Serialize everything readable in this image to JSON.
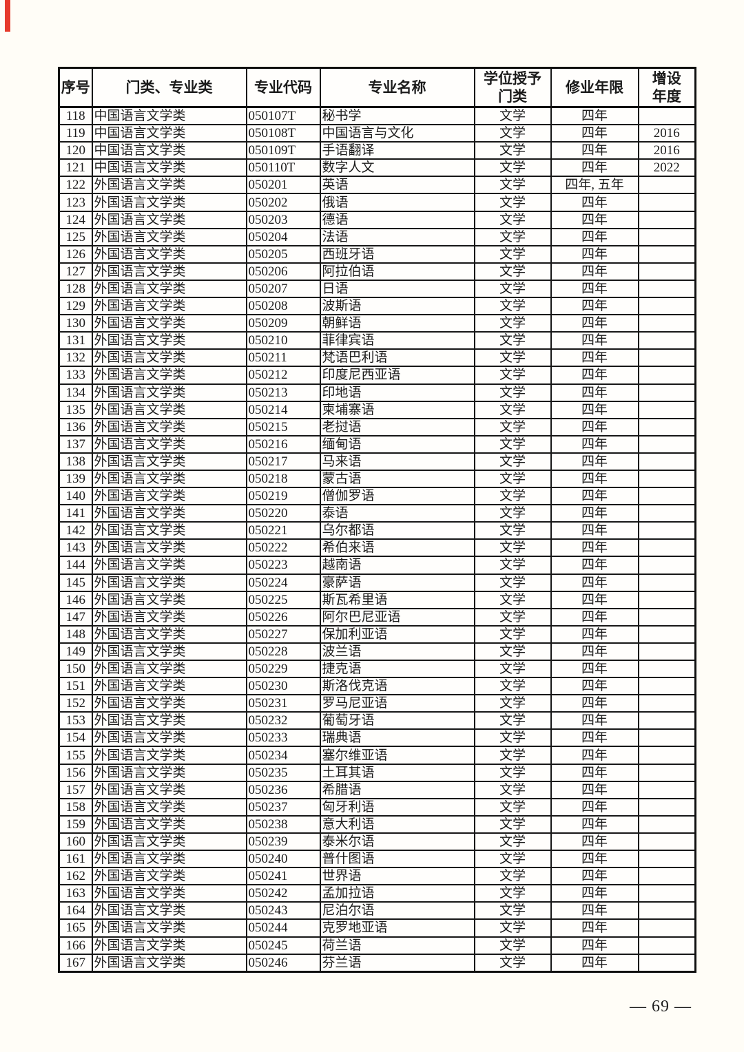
{
  "page": {
    "number_label": "— 69 —"
  },
  "colors": {
    "accent_red": "#e63a2b",
    "border_black": "#161616",
    "paper_white": "#fffdf7"
  },
  "table": {
    "columns": [
      {
        "key": "serial",
        "label": "序号"
      },
      {
        "key": "category",
        "label": "门类、专业类"
      },
      {
        "key": "code",
        "label": "专业代码"
      },
      {
        "key": "name",
        "label": "专业名称"
      },
      {
        "key": "degree",
        "label": "学位授予\n门类"
      },
      {
        "key": "duration",
        "label": "修业年限"
      },
      {
        "key": "year_added",
        "label": "增设\n年度"
      }
    ],
    "rows": [
      [
        "118",
        "中国语言文学类",
        "050107T",
        "秘书学",
        "文学",
        "四年",
        ""
      ],
      [
        "119",
        "中国语言文学类",
        "050108T",
        "中国语言与文化",
        "文学",
        "四年",
        "2016"
      ],
      [
        "120",
        "中国语言文学类",
        "050109T",
        "手语翻译",
        "文学",
        "四年",
        "2016"
      ],
      [
        "121",
        "中国语言文学类",
        "050110T",
        "数字人文",
        "文学",
        "四年",
        "2022"
      ],
      [
        "122",
        "外国语言文学类",
        "050201",
        "英语",
        "文学",
        "四年, 五年",
        ""
      ],
      [
        "123",
        "外国语言文学类",
        "050202",
        "俄语",
        "文学",
        "四年",
        ""
      ],
      [
        "124",
        "外国语言文学类",
        "050203",
        "德语",
        "文学",
        "四年",
        ""
      ],
      [
        "125",
        "外国语言文学类",
        "050204",
        "法语",
        "文学",
        "四年",
        ""
      ],
      [
        "126",
        "外国语言文学类",
        "050205",
        "西班牙语",
        "文学",
        "四年",
        ""
      ],
      [
        "127",
        "外国语言文学类",
        "050206",
        "阿拉伯语",
        "文学",
        "四年",
        ""
      ],
      [
        "128",
        "外国语言文学类",
        "050207",
        "日语",
        "文学",
        "四年",
        ""
      ],
      [
        "129",
        "外国语言文学类",
        "050208",
        "波斯语",
        "文学",
        "四年",
        ""
      ],
      [
        "130",
        "外国语言文学类",
        "050209",
        "朝鲜语",
        "文学",
        "四年",
        ""
      ],
      [
        "131",
        "外国语言文学类",
        "050210",
        "菲律宾语",
        "文学",
        "四年",
        ""
      ],
      [
        "132",
        "外国语言文学类",
        "050211",
        "梵语巴利语",
        "文学",
        "四年",
        ""
      ],
      [
        "133",
        "外国语言文学类",
        "050212",
        "印度尼西亚语",
        "文学",
        "四年",
        ""
      ],
      [
        "134",
        "外国语言文学类",
        "050213",
        "印地语",
        "文学",
        "四年",
        ""
      ],
      [
        "135",
        "外国语言文学类",
        "050214",
        "柬埔寨语",
        "文学",
        "四年",
        ""
      ],
      [
        "136",
        "外国语言文学类",
        "050215",
        "老挝语",
        "文学",
        "四年",
        ""
      ],
      [
        "137",
        "外国语言文学类",
        "050216",
        "缅甸语",
        "文学",
        "四年",
        ""
      ],
      [
        "138",
        "外国语言文学类",
        "050217",
        "马来语",
        "文学",
        "四年",
        ""
      ],
      [
        "139",
        "外国语言文学类",
        "050218",
        "蒙古语",
        "文学",
        "四年",
        ""
      ],
      [
        "140",
        "外国语言文学类",
        "050219",
        "僧伽罗语",
        "文学",
        "四年",
        ""
      ],
      [
        "141",
        "外国语言文学类",
        "050220",
        "泰语",
        "文学",
        "四年",
        ""
      ],
      [
        "142",
        "外国语言文学类",
        "050221",
        "乌尔都语",
        "文学",
        "四年",
        ""
      ],
      [
        "143",
        "外国语言文学类",
        "050222",
        "希伯来语",
        "文学",
        "四年",
        ""
      ],
      [
        "144",
        "外国语言文学类",
        "050223",
        "越南语",
        "文学",
        "四年",
        ""
      ],
      [
        "145",
        "外国语言文学类",
        "050224",
        "豪萨语",
        "文学",
        "四年",
        ""
      ],
      [
        "146",
        "外国语言文学类",
        "050225",
        "斯瓦希里语",
        "文学",
        "四年",
        ""
      ],
      [
        "147",
        "外国语言文学类",
        "050226",
        "阿尔巴尼亚语",
        "文学",
        "四年",
        ""
      ],
      [
        "148",
        "外国语言文学类",
        "050227",
        "保加利亚语",
        "文学",
        "四年",
        ""
      ],
      [
        "149",
        "外国语言文学类",
        "050228",
        "波兰语",
        "文学",
        "四年",
        ""
      ],
      [
        "150",
        "外国语言文学类",
        "050229",
        "捷克语",
        "文学",
        "四年",
        ""
      ],
      [
        "151",
        "外国语言文学类",
        "050230",
        "斯洛伐克语",
        "文学",
        "四年",
        ""
      ],
      [
        "152",
        "外国语言文学类",
        "050231",
        "罗马尼亚语",
        "文学",
        "四年",
        ""
      ],
      [
        "153",
        "外国语言文学类",
        "050232",
        "葡萄牙语",
        "文学",
        "四年",
        ""
      ],
      [
        "154",
        "外国语言文学类",
        "050233",
        "瑞典语",
        "文学",
        "四年",
        ""
      ],
      [
        "155",
        "外国语言文学类",
        "050234",
        "塞尔维亚语",
        "文学",
        "四年",
        ""
      ],
      [
        "156",
        "外国语言文学类",
        "050235",
        "土耳其语",
        "文学",
        "四年",
        ""
      ],
      [
        "157",
        "外国语言文学类",
        "050236",
        "希腊语",
        "文学",
        "四年",
        ""
      ],
      [
        "158",
        "外国语言文学类",
        "050237",
        "匈牙利语",
        "文学",
        "四年",
        ""
      ],
      [
        "159",
        "外国语言文学类",
        "050238",
        "意大利语",
        "文学",
        "四年",
        ""
      ],
      [
        "160",
        "外国语言文学类",
        "050239",
        "泰米尔语",
        "文学",
        "四年",
        ""
      ],
      [
        "161",
        "外国语言文学类",
        "050240",
        "普什图语",
        "文学",
        "四年",
        ""
      ],
      [
        "162",
        "外国语言文学类",
        "050241",
        "世界语",
        "文学",
        "四年",
        ""
      ],
      [
        "163",
        "外国语言文学类",
        "050242",
        "孟加拉语",
        "文学",
        "四年",
        ""
      ],
      [
        "164",
        "外国语言文学类",
        "050243",
        "尼泊尔语",
        "文学",
        "四年",
        ""
      ],
      [
        "165",
        "外国语言文学类",
        "050244",
        "克罗地亚语",
        "文学",
        "四年",
        ""
      ],
      [
        "166",
        "外国语言文学类",
        "050245",
        "荷兰语",
        "文学",
        "四年",
        ""
      ],
      [
        "167",
        "外国语言文学类",
        "050246",
        "芬兰语",
        "文学",
        "四年",
        ""
      ]
    ]
  }
}
